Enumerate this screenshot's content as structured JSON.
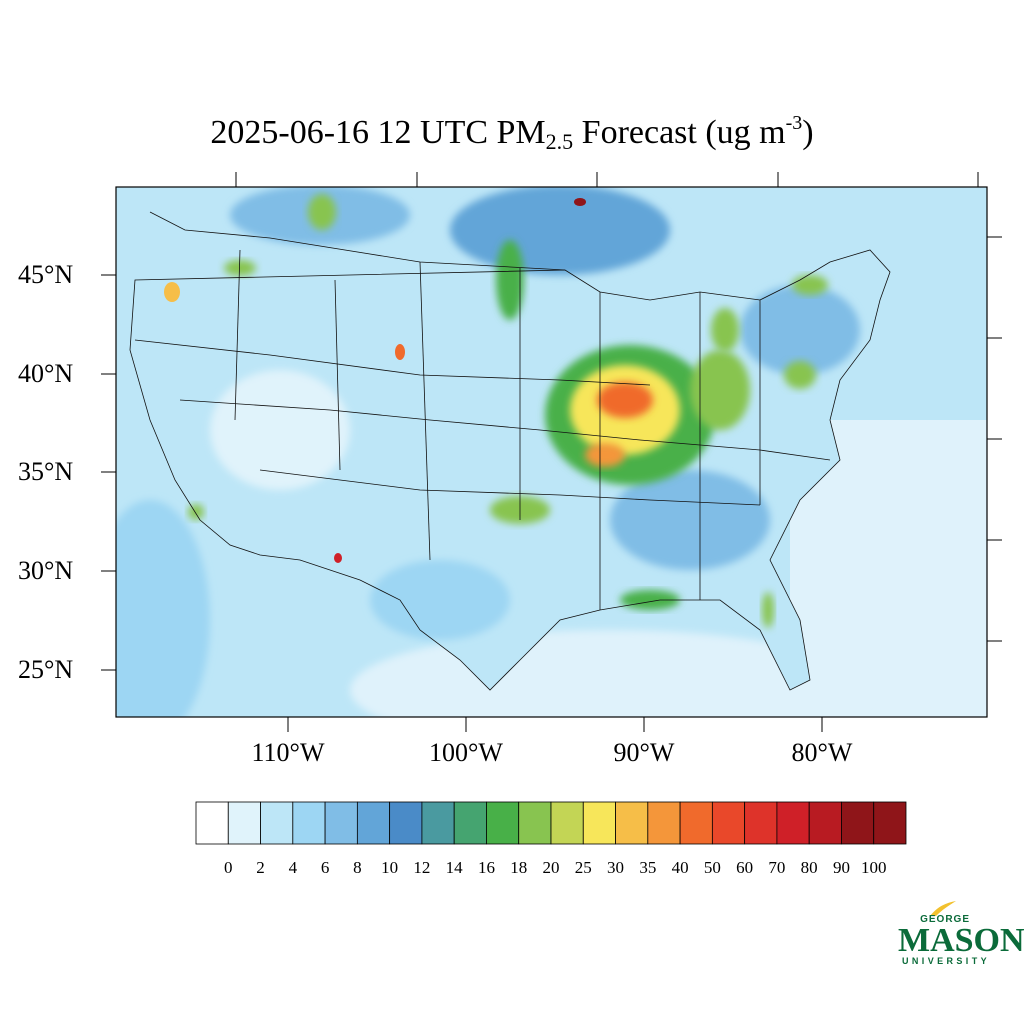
{
  "title": {
    "prefix": "2025-06-16 12 UTC PM",
    "subscript": "2.5",
    "middle": " Forecast (ug m",
    "superscript": "-3",
    "suffix": ")"
  },
  "map": {
    "region": "Contiguous United States",
    "lat_labels": [
      "45°N",
      "40°N",
      "35°N",
      "30°N",
      "25°N"
    ],
    "lon_labels": [
      "110°W",
      "100°W",
      "90°W",
      "80°W"
    ]
  },
  "colorbar": {
    "labels": [
      "0",
      "2",
      "4",
      "6",
      "8",
      "10",
      "12",
      "14",
      "16",
      "18",
      "20",
      "25",
      "30",
      "35",
      "40",
      "50",
      "60",
      "70",
      "80",
      "90",
      "100"
    ],
    "colors": [
      "#ffffff",
      "#e0f3fb",
      "#bde6f7",
      "#9dd6f3",
      "#80bde6",
      "#62a5d8",
      "#4a8bc8",
      "#4a9aa0",
      "#45a470",
      "#48b048",
      "#88c450",
      "#c3d555",
      "#f7e65a",
      "#f6be48",
      "#f4963a",
      "#f06a2c",
      "#e9482a",
      "#de332a",
      "#cf2028",
      "#b81b22",
      "#8f1519"
    ]
  },
  "logo": {
    "line1": "GEORGE",
    "line2": "MASON",
    "line3": "UNIVERSITY",
    "color": "#0b6b3a",
    "accent": "#f2c12e"
  }
}
